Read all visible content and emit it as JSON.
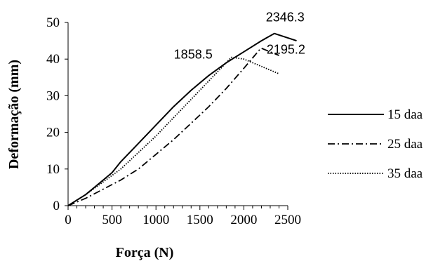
{
  "chart_data": {
    "type": "line",
    "title": "",
    "xlabel": "Força (N)",
    "ylabel": "Deformação (mm)",
    "xlim": [
      0,
      2500
    ],
    "ylim": [
      0,
      50
    ],
    "xticks": [
      0,
      500,
      1000,
      1500,
      2000,
      2500
    ],
    "yticks": [
      0,
      10,
      20,
      30,
      40,
      50
    ],
    "grid": false,
    "legend_position": "right",
    "series": [
      {
        "name": "15 daa",
        "style": "solid",
        "color": "#000000",
        "x": [
          0,
          200,
          400,
          500,
          600,
          800,
          1000,
          1200,
          1400,
          1600,
          1800,
          2000,
          2200,
          2346.3,
          2600
        ],
        "y": [
          0,
          3,
          7,
          9,
          12,
          17,
          22,
          27,
          31.5,
          35.5,
          39,
          42,
          45,
          47,
          45
        ]
      },
      {
        "name": "25 daa",
        "style": "dashdot",
        "color": "#000000",
        "x": [
          0,
          200,
          400,
          600,
          800,
          1000,
          1200,
          1400,
          1600,
          1800,
          2000,
          2195.2,
          2400
        ],
        "y": [
          0,
          2,
          4.5,
          7,
          10,
          14,
          18,
          22.5,
          27,
          32,
          37.5,
          43,
          41
        ]
      },
      {
        "name": "35 daa",
        "style": "dotted",
        "color": "#000000",
        "x": [
          0,
          200,
          400,
          600,
          800,
          1000,
          1200,
          1400,
          1600,
          1858.5,
          2000,
          2200,
          2400
        ],
        "y": [
          0,
          3,
          6.5,
          10,
          14.5,
          19,
          24,
          29,
          34,
          40.5,
          40,
          38,
          36
        ]
      }
    ],
    "annotations": [
      {
        "text": "2346.3",
        "x": 2346.3,
        "y": 47
      },
      {
        "text": "2195.2",
        "x": 2195.2,
        "y": 43
      },
      {
        "text": "1858.5",
        "x": 1858.5,
        "y": 40.5
      }
    ]
  }
}
